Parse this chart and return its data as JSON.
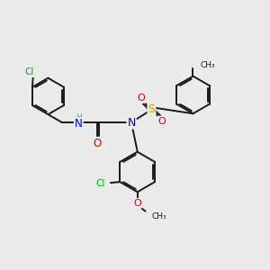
{
  "bg_color": "#ebebeb",
  "bond_color": "#1a1a1a",
  "bond_width": 1.4,
  "figsize": [
    3.0,
    3.0
  ],
  "dpi": 100,
  "atom_colors": {
    "Cl": "#00aa00",
    "N": "#0000cc",
    "O": "#cc0000",
    "S": "#ccaa00",
    "H": "#5599aa",
    "C": "#1a1a1a"
  }
}
